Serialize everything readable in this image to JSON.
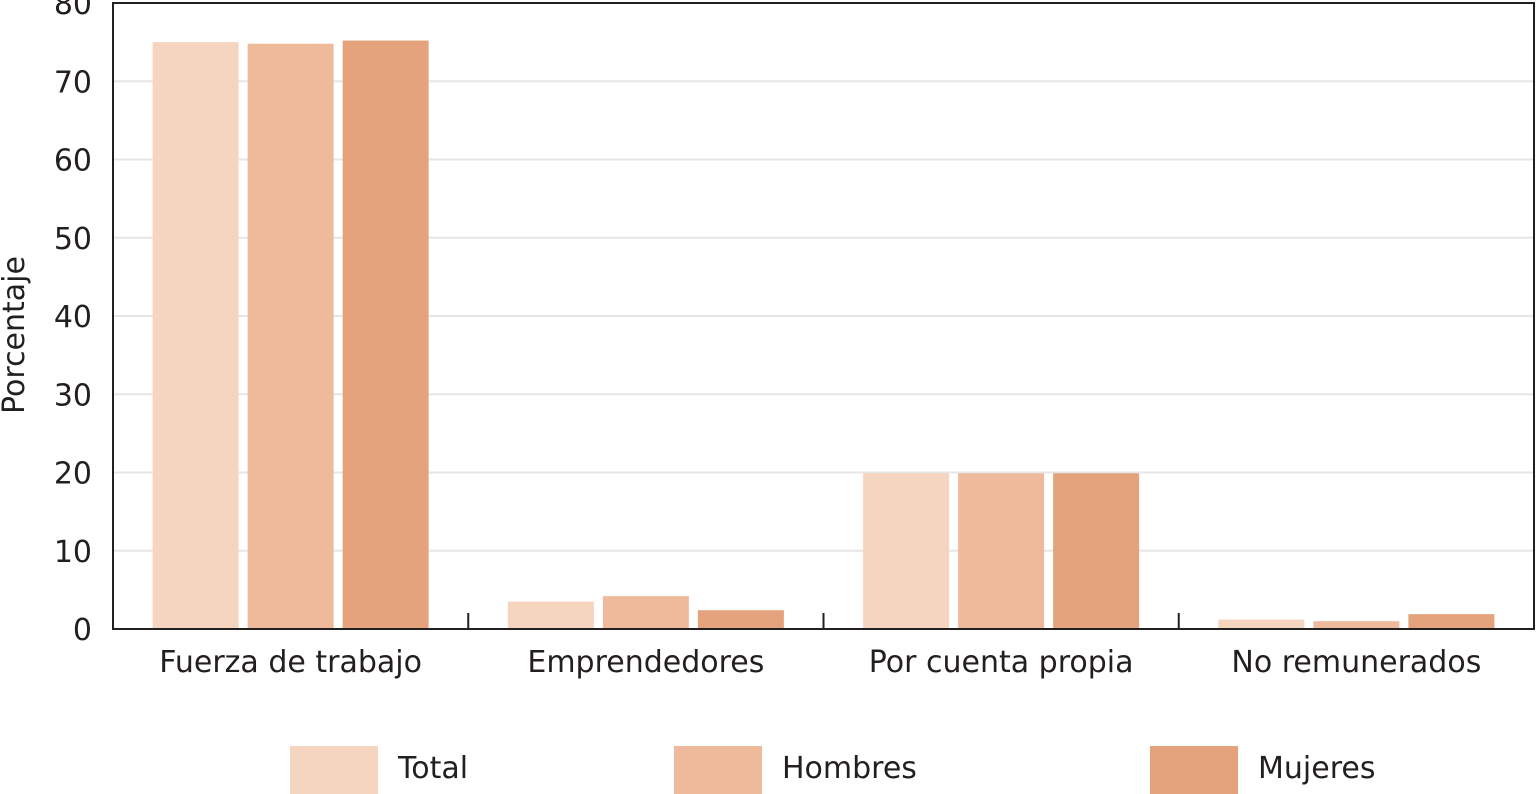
{
  "chart_data": {
    "type": "bar",
    "title": "",
    "xlabel": "",
    "ylabel": "Porcentaje",
    "ylim": [
      0,
      80
    ],
    "yticks": [
      0,
      10,
      20,
      30,
      40,
      50,
      60,
      70,
      80
    ],
    "grid": true,
    "legend_position": "bottom",
    "categories": [
      "Fuerza de trabajo",
      "Emprendedores",
      "Por cuenta propia",
      "No remunerados"
    ],
    "series": [
      {
        "name": "Total",
        "color": "#f5d5c0",
        "values": [
          75.0,
          3.5,
          19.9,
          1.2
        ]
      },
      {
        "name": "Hombres",
        "color": "#efba9b",
        "values": [
          74.8,
          4.2,
          19.9,
          1.0
        ]
      },
      {
        "name": "Mujeres",
        "color": "#e4a37d",
        "values": [
          75.2,
          2.4,
          19.9,
          1.9
        ]
      }
    ]
  }
}
